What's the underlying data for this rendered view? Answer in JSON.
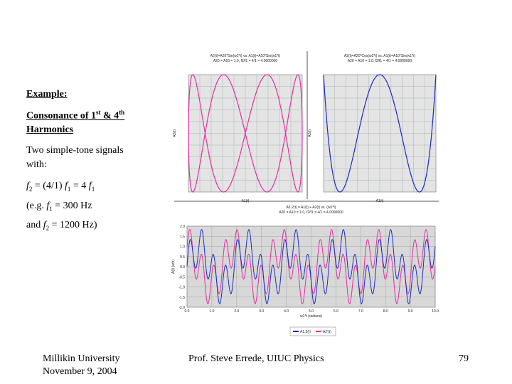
{
  "slide": {
    "heading": "Example:",
    "subheading": [
      "Consonance of 1",
      "st",
      " & 4",
      "th",
      "Harmonics"
    ],
    "body": [
      "Two simple-tone signals",
      "with:"
    ],
    "formula": [
      "f",
      "2",
      " = (4/1) ",
      "f",
      "1",
      " = 4 ",
      "f",
      "1"
    ],
    "example": [
      "(e.g. ",
      "f",
      "1",
      " = 300 Hz",
      "and ",
      "f",
      "2",
      " = 1200 Hz)"
    ],
    "footer": {
      "left": [
        "Millikin University",
        "November 9, 2004"
      ],
      "center": "Prof. Steve Errede, UIUC Physics",
      "page": "79"
    }
  },
  "charts": [
    {
      "title": [
        "A2(t)=A20*Sin(w2*t) vs. A1(t)=A10*Sin(w1*t)",
        "A20 = A10 = 1.0, f2/f1 = 4/1 = 4.0000000"
      ],
      "ylabel": "A2(t)",
      "xlabel": "A1(t)",
      "color": "#e0309f"
    },
    {
      "title": [
        "A2(t)=A20*Cos(w2*t) vs. A1(t)=A10*Sin(w1*t)",
        "A20 = A10 = 1.0, f2/f1 = 4/1 = 4.0000000"
      ],
      "ylabel": "A2(t)",
      "xlabel": "A1(t)",
      "color": "#1c2fc0"
    },
    {
      "title": [
        "A1,2(t) = A1(t) + A2(t) vs. (w1*t)",
        "A20 = A10 = 1.0, f2/f1 = 4/1 = 4.0000000"
      ],
      "ylabel": "A(t) (arb)",
      "xlabel": "w1*t (radians)",
      "legend": [
        {
          "name": "A1,2(t)",
          "color": "#1c2fc0"
        },
        {
          "name": "A2'(t)",
          "color": "#e0309f"
        }
      ],
      "xlim": [
        0,
        10
      ],
      "ylim": [
        -2,
        2
      ],
      "xticks": [
        {
          "value": 0,
          "label": "0.0"
        },
        {
          "value": 1,
          "label": "1.0"
        },
        {
          "value": 2,
          "label": "2.0"
        },
        {
          "value": 3,
          "label": "3.0"
        },
        {
          "value": 4,
          "label": "4.0"
        },
        {
          "value": 5,
          "label": "5.0"
        },
        {
          "value": 6,
          "label": "6.0"
        },
        {
          "value": 7,
          "label": "7.0"
        },
        {
          "value": 8,
          "label": "8.0"
        },
        {
          "value": 9,
          "label": "9.0"
        },
        {
          "value": 10,
          "label": "10.0"
        }
      ],
      "yticks": [
        {
          "value": 2,
          "label": "2.0"
        },
        {
          "value": 1.5,
          "label": "1.5"
        },
        {
          "value": 1,
          "label": "1.0"
        },
        {
          "value": 0.5,
          "label": "0.5"
        },
        {
          "value": 0,
          "label": "0.0"
        },
        {
          "value": -0.5,
          "label": "-0.5"
        },
        {
          "value": -1,
          "label": "-1.0"
        },
        {
          "value": -1.5,
          "label": "-1.5"
        },
        {
          "value": -2,
          "label": "-2.0"
        }
      ]
    }
  ]
}
